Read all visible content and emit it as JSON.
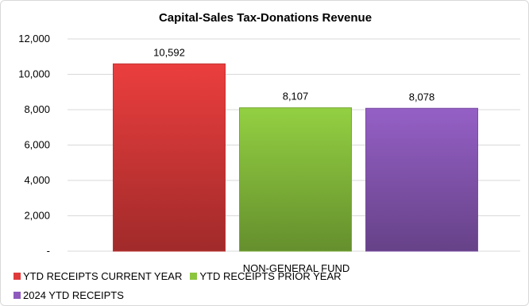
{
  "chart_data": {
    "type": "bar",
    "title": "Capital-Sales Tax-Donations Revenue",
    "categories": [
      "NON-GENERAL FUND"
    ],
    "series": [
      {
        "name": "YTD RECEIPTS CURRENT YEAR",
        "values": [
          10592
        ],
        "label": "10,592",
        "color": "#e03b3b"
      },
      {
        "name": "YTD RECEIPTS PRIOR YEAR",
        "values": [
          8107
        ],
        "label": "8,107",
        "color": "#8cc63f"
      },
      {
        "name": "2024 YTD RECEIPTS",
        "values": [
          8078
        ],
        "label": "8,078",
        "color": "#8e5bbd"
      }
    ],
    "ylim": [
      0,
      12000
    ],
    "yticks": [
      0,
      2000,
      4000,
      6000,
      8000,
      10000,
      12000
    ],
    "ytick_labels": [
      "-",
      "2,000",
      "4,000",
      "6,000",
      "8,000",
      "10,000",
      "12,000"
    ],
    "grid": true,
    "legend_position": "bottom-left"
  }
}
